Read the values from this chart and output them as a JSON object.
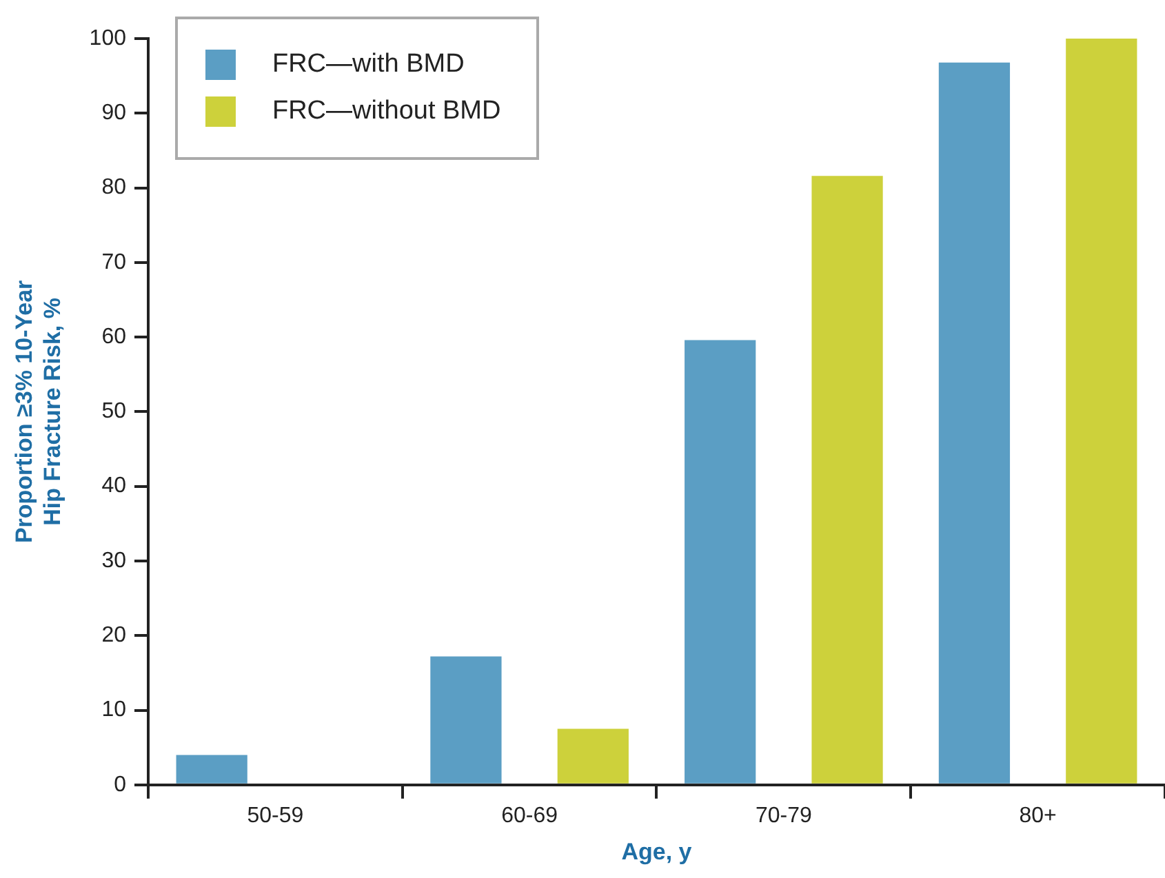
{
  "chart_data": {
    "type": "bar",
    "xlabel": "Age, y",
    "ylabel": "Proportion ≥3% 10-Year Hip Fracture Risk, %",
    "categories": [
      "50-59",
      "60-69",
      "70-79",
      "80+"
    ],
    "series": [
      {
        "name": "FRC—with BMD",
        "color": "#5b9ec4",
        "values": [
          4,
          17.2,
          59.6,
          96.8
        ]
      },
      {
        "name": "FRC—without BMD",
        "color": "#cdd13b",
        "values": [
          0,
          7.5,
          81.6,
          100
        ]
      }
    ],
    "ylim": [
      0,
      100
    ],
    "yticks": [
      0,
      10,
      20,
      30,
      40,
      50,
      60,
      70,
      80,
      90,
      100
    ],
    "grid": false,
    "legend": "top left"
  }
}
